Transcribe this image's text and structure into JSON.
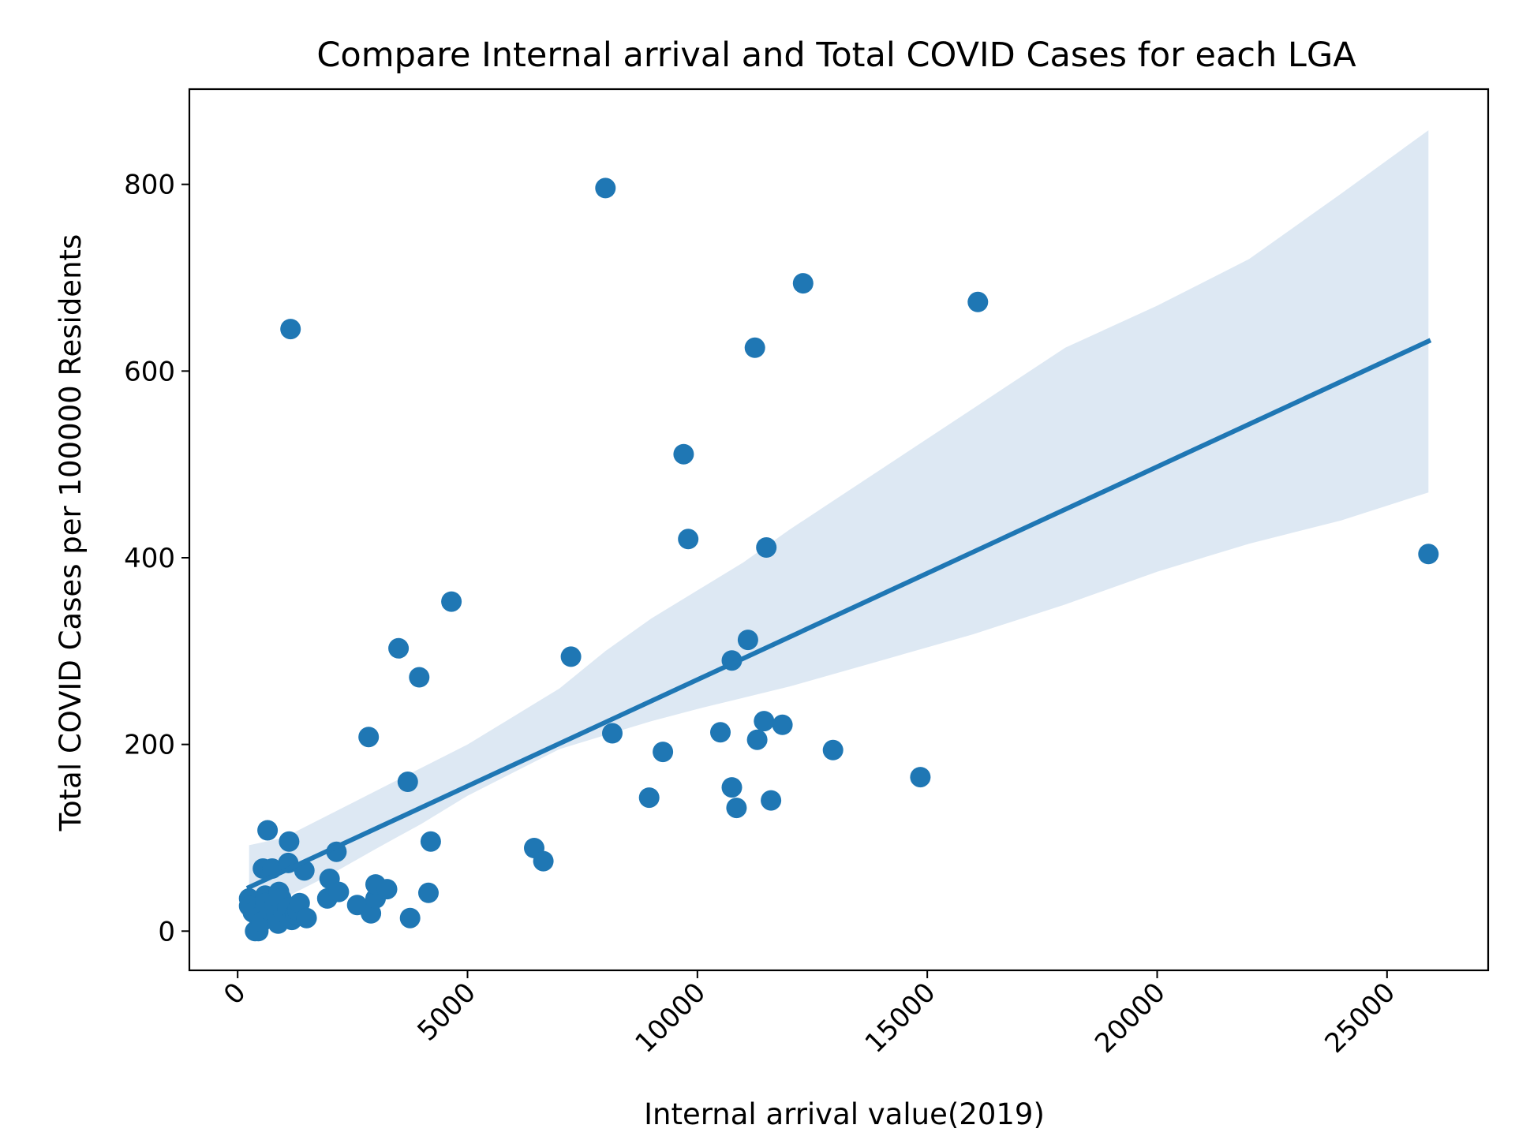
{
  "chart_data": {
    "type": "scatter",
    "title": "Compare Internal arrival and Total COVID Cases for each LGA",
    "xlabel": "Internal arrival value(2019)",
    "ylabel": "Total COVID Cases per 100000 Residents",
    "xlim": [
      -1050,
      27200
    ],
    "ylim": [
      -42,
      902
    ],
    "xticks": [
      0,
      5000,
      10000,
      15000,
      20000,
      25000
    ],
    "yticks": [
      0,
      200,
      400,
      600,
      800
    ],
    "xtick_rotation": 45,
    "grid": false,
    "colors": {
      "points": "#1f77b4",
      "line": "#1f77b4",
      "band": "#dde8f3"
    },
    "points": [
      {
        "x": 250,
        "y": 35
      },
      {
        "x": 250,
        "y": 27
      },
      {
        "x": 330,
        "y": 20
      },
      {
        "x": 380,
        "y": 0
      },
      {
        "x": 450,
        "y": 0
      },
      {
        "x": 450,
        "y": 15
      },
      {
        "x": 520,
        "y": 10
      },
      {
        "x": 550,
        "y": 67
      },
      {
        "x": 600,
        "y": 38
      },
      {
        "x": 600,
        "y": 30
      },
      {
        "x": 650,
        "y": 108
      },
      {
        "x": 700,
        "y": 22
      },
      {
        "x": 750,
        "y": 67
      },
      {
        "x": 800,
        "y": 28
      },
      {
        "x": 850,
        "y": 18
      },
      {
        "x": 880,
        "y": 8
      },
      {
        "x": 900,
        "y": 42
      },
      {
        "x": 950,
        "y": 35
      },
      {
        "x": 1000,
        "y": 20
      },
      {
        "x": 1080,
        "y": 25
      },
      {
        "x": 1100,
        "y": 73
      },
      {
        "x": 1120,
        "y": 96
      },
      {
        "x": 1150,
        "y": 645
      },
      {
        "x": 1180,
        "y": 12
      },
      {
        "x": 1250,
        "y": 18
      },
      {
        "x": 1300,
        "y": 22
      },
      {
        "x": 1350,
        "y": 30
      },
      {
        "x": 1450,
        "y": 65
      },
      {
        "x": 1500,
        "y": 14
      },
      {
        "x": 1950,
        "y": 35
      },
      {
        "x": 2000,
        "y": 56
      },
      {
        "x": 2150,
        "y": 85
      },
      {
        "x": 2200,
        "y": 42
      },
      {
        "x": 2600,
        "y": 28
      },
      {
        "x": 2850,
        "y": 208
      },
      {
        "x": 2900,
        "y": 19
      },
      {
        "x": 3000,
        "y": 35
      },
      {
        "x": 3000,
        "y": 50
      },
      {
        "x": 3250,
        "y": 45
      },
      {
        "x": 3500,
        "y": 303
      },
      {
        "x": 3700,
        "y": 160
      },
      {
        "x": 3750,
        "y": 14
      },
      {
        "x": 3950,
        "y": 272
      },
      {
        "x": 4150,
        "y": 41
      },
      {
        "x": 4200,
        "y": 96
      },
      {
        "x": 4650,
        "y": 353
      },
      {
        "x": 6450,
        "y": 89
      },
      {
        "x": 6650,
        "y": 75
      },
      {
        "x": 7250,
        "y": 294
      },
      {
        "x": 8000,
        "y": 796
      },
      {
        "x": 8150,
        "y": 212
      },
      {
        "x": 8950,
        "y": 143
      },
      {
        "x": 9250,
        "y": 192
      },
      {
        "x": 9700,
        "y": 511
      },
      {
        "x": 9800,
        "y": 420
      },
      {
        "x": 10500,
        "y": 213
      },
      {
        "x": 10750,
        "y": 290
      },
      {
        "x": 10750,
        "y": 154
      },
      {
        "x": 10850,
        "y": 132
      },
      {
        "x": 11100,
        "y": 312
      },
      {
        "x": 11250,
        "y": 625
      },
      {
        "x": 11300,
        "y": 205
      },
      {
        "x": 11450,
        "y": 225
      },
      {
        "x": 11500,
        "y": 411
      },
      {
        "x": 11600,
        "y": 140
      },
      {
        "x": 11850,
        "y": 221
      },
      {
        "x": 12300,
        "y": 694
      },
      {
        "x": 12950,
        "y": 194
      },
      {
        "x": 14850,
        "y": 165
      },
      {
        "x": 16100,
        "y": 674
      },
      {
        "x": 25900,
        "y": 404
      }
    ],
    "regression": {
      "line": [
        {
          "x": 250,
          "y": 47
        },
        {
          "x": 25900,
          "y": 632
        }
      ],
      "ci_upper": [
        {
          "x": 250,
          "y": 92
        },
        {
          "x": 1000,
          "y": 100
        },
        {
          "x": 2000,
          "y": 125
        },
        {
          "x": 3000,
          "y": 150
        },
        {
          "x": 4000,
          "y": 175
        },
        {
          "x": 5000,
          "y": 200
        },
        {
          "x": 6000,
          "y": 230
        },
        {
          "x": 7000,
          "y": 260
        },
        {
          "x": 8000,
          "y": 300
        },
        {
          "x": 9000,
          "y": 335
        },
        {
          "x": 10000,
          "y": 365
        },
        {
          "x": 11000,
          "y": 395
        },
        {
          "x": 12000,
          "y": 430
        },
        {
          "x": 14000,
          "y": 495
        },
        {
          "x": 16000,
          "y": 560
        },
        {
          "x": 18000,
          "y": 625
        },
        {
          "x": 20000,
          "y": 670
        },
        {
          "x": 22000,
          "y": 720
        },
        {
          "x": 24000,
          "y": 790
        },
        {
          "x": 25900,
          "y": 858
        }
      ],
      "ci_lower": [
        {
          "x": 250,
          "y": 12
        },
        {
          "x": 1000,
          "y": 35
        },
        {
          "x": 2000,
          "y": 60
        },
        {
          "x": 3000,
          "y": 88
        },
        {
          "x": 4000,
          "y": 115
        },
        {
          "x": 5000,
          "y": 145
        },
        {
          "x": 6000,
          "y": 170
        },
        {
          "x": 7000,
          "y": 195
        },
        {
          "x": 8000,
          "y": 210
        },
        {
          "x": 9000,
          "y": 225
        },
        {
          "x": 10000,
          "y": 238
        },
        {
          "x": 11000,
          "y": 250
        },
        {
          "x": 12000,
          "y": 262
        },
        {
          "x": 14000,
          "y": 290
        },
        {
          "x": 16000,
          "y": 318
        },
        {
          "x": 18000,
          "y": 350
        },
        {
          "x": 20000,
          "y": 385
        },
        {
          "x": 22000,
          "y": 415
        },
        {
          "x": 24000,
          "y": 440
        },
        {
          "x": 25900,
          "y": 470
        }
      ]
    }
  }
}
